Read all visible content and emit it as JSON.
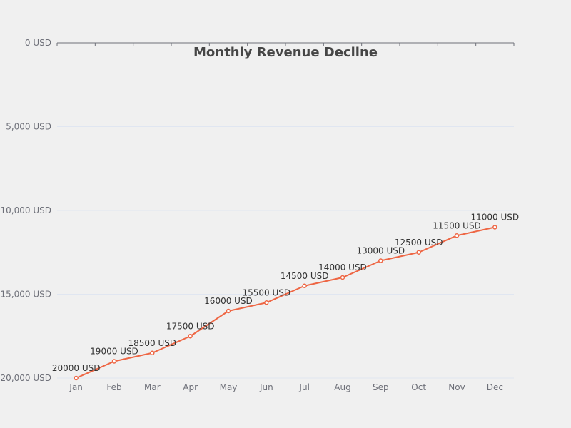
{
  "chart_data": {
    "type": "line",
    "title": "Monthly Revenue Decline",
    "xlabel": "",
    "ylabel": "",
    "categories": [
      "Jan",
      "Feb",
      "Mar",
      "Apr",
      "May",
      "Jun",
      "Jul",
      "Aug",
      "Sep",
      "Oct",
      "Nov",
      "Dec"
    ],
    "series": [
      {
        "values": [
          20000,
          19000,
          18500,
          17500,
          16000,
          15500,
          14500,
          14000,
          13000,
          12500,
          11500,
          11000
        ],
        "data_labels": [
          "20000 USD",
          "19000 USD",
          "18500 USD",
          "17500 USD",
          "16000 USD",
          "15500 USD",
          "14500 USD",
          "14000 USD",
          "13000 USD",
          "12500 USD",
          "11500 USD",
          "11000 USD"
        ],
        "color": "#ee6644"
      }
    ],
    "y_axis": {
      "inverse": true,
      "ylim": [
        0,
        20000
      ],
      "ticks": [
        0,
        5000,
        10000,
        15000,
        20000
      ],
      "tick_labels": [
        "0 USD",
        "5,000 USD",
        "10,000 USD",
        "15,000 USD",
        "20,000 USD"
      ]
    },
    "x_axis_position": "top",
    "grid": true,
    "legend": "none",
    "colors": {
      "line": "#ee6644",
      "grid": "#e0e6f1",
      "axis": "#6e7079",
      "background": "#f0f0f0"
    }
  }
}
